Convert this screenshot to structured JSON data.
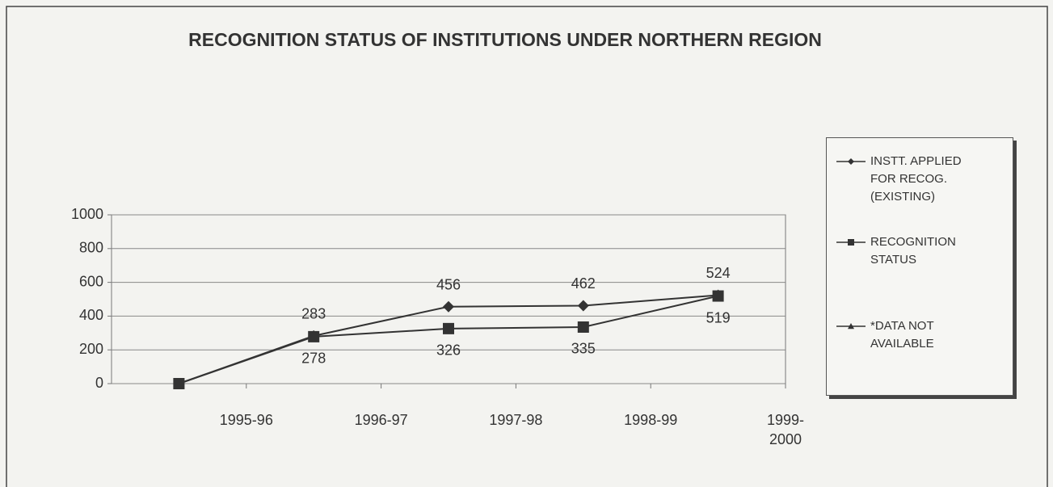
{
  "chart_data": {
    "type": "line",
    "title": "RECOGNITION STATUS OF INSTITUTIONS UNDER NORTHERN REGION",
    "categories": [
      "1995-96",
      "1996-97",
      "1997-98",
      "1998-99",
      "1999-2000"
    ],
    "series": [
      {
        "name": "INSTT. APPLIED FOR RECOG. (EXISTING)",
        "color": "#333333",
        "marker": "diamond",
        "values": [
          0,
          283,
          456,
          462,
          524
        ],
        "value_labels": [
          null,
          "283",
          "456",
          "462",
          "524"
        ]
      },
      {
        "name": "RECOGNITION STATUS",
        "color": "#333333",
        "marker": "square",
        "values": [
          0,
          278,
          326,
          335,
          519
        ],
        "value_labels": [
          null,
          "278",
          "326",
          "335",
          "519"
        ]
      },
      {
        "name": "*DATA NOT AVAILABLE",
        "color": "#333333",
        "marker": "triangle",
        "values": [
          null,
          null,
          null,
          null,
          null
        ]
      }
    ],
    "ylim": [
      0,
      1000
    ],
    "yticks": [
      0,
      200,
      400,
      600,
      800,
      1000
    ],
    "grid": true,
    "legend": "right"
  }
}
